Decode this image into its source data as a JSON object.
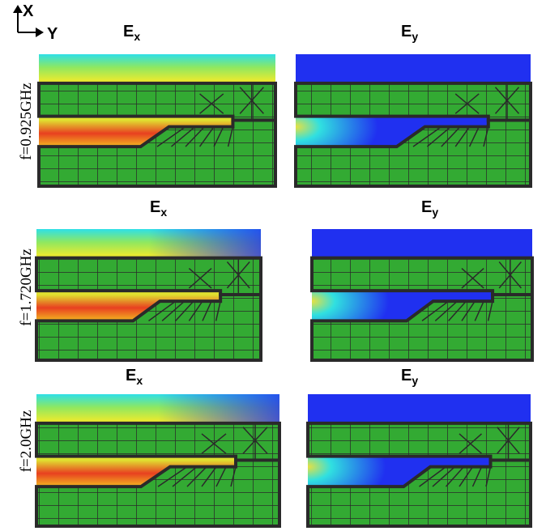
{
  "axes": {
    "x": "X",
    "y": "Y"
  },
  "rows": [
    {
      "frequency": "f=0.925GHz",
      "panels": [
        {
          "main": "E",
          "sub": "x"
        },
        {
          "main": "E",
          "sub": "y"
        }
      ]
    },
    {
      "frequency": "f=1.720GHz",
      "panels": [
        {
          "main": "E",
          "sub": "x"
        },
        {
          "main": "E",
          "sub": "y"
        }
      ]
    },
    {
      "frequency": "f=2.0GHz",
      "panels": [
        {
          "main": "E",
          "sub": "x"
        },
        {
          "main": "E",
          "sub": "y"
        }
      ]
    }
  ]
}
